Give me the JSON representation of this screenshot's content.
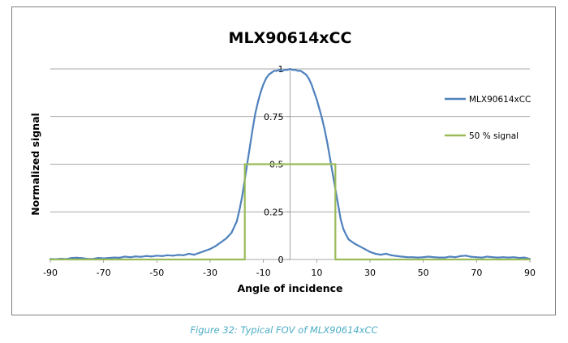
{
  "caption": "Figure 32: Typical FOV of MLX90614xCC",
  "chart_data": {
    "type": "line",
    "title": "MLX90614xCC",
    "xlabel": "Angle of incidence",
    "ylabel": "Normalized signal",
    "xlim": [
      -90,
      90
    ],
    "ylim": [
      0,
      1
    ],
    "xticks": [
      -90,
      -70,
      -50,
      -30,
      -10,
      10,
      30,
      50,
      70,
      90
    ],
    "xtick_labels": [
      "-90",
      "-70",
      "-50",
      "-30",
      "-10",
      "10",
      "30",
      "50",
      "70",
      "90"
    ],
    "yticks": [
      0,
      0.25,
      0.5,
      0.75,
      1
    ],
    "ytick_labels": [
      "0",
      "0.25",
      "0.5",
      "0.75",
      "1"
    ],
    "grid": "horizontal",
    "legend_position": "right",
    "series": [
      {
        "name": "MLX90614xCC",
        "color": "#4f81bd",
        "x": [
          -90,
          -88,
          -86,
          -84,
          -82,
          -80,
          -78,
          -76,
          -74,
          -72,
          -70,
          -68,
          -66,
          -64,
          -62,
          -60,
          -58,
          -56,
          -54,
          -52,
          -50,
          -48,
          -46,
          -44,
          -42,
          -40,
          -38,
          -36,
          -34,
          -32,
          -30,
          -28,
          -26,
          -24,
          -22,
          -20,
          -19,
          -18,
          -17,
          -16,
          -15,
          -14,
          -13,
          -12,
          -11,
          -10,
          -9,
          -8,
          -7,
          -6,
          -5,
          -4,
          -3,
          -2,
          -1,
          0,
          1,
          2,
          3,
          4,
          5,
          6,
          7,
          8,
          9,
          10,
          11,
          12,
          13,
          14,
          15,
          16,
          17,
          18,
          19,
          20,
          21,
          22,
          24,
          26,
          28,
          30,
          32,
          34,
          36,
          38,
          40,
          42,
          44,
          46,
          48,
          50,
          52,
          54,
          56,
          58,
          60,
          62,
          64,
          66,
          68,
          70,
          72,
          74,
          76,
          78,
          80,
          82,
          84,
          86,
          88,
          90
        ],
        "values": [
          0.003,
          0.001,
          0.004,
          0.002,
          0.008,
          0.009,
          0.007,
          0.003,
          0.003,
          0.008,
          0.006,
          0.008,
          0.01,
          0.009,
          0.015,
          0.012,
          0.016,
          0.014,
          0.018,
          0.016,
          0.02,
          0.018,
          0.022,
          0.02,
          0.024,
          0.022,
          0.03,
          0.025,
          0.035,
          0.045,
          0.055,
          0.07,
          0.09,
          0.11,
          0.14,
          0.2,
          0.26,
          0.33,
          0.42,
          0.51,
          0.6,
          0.69,
          0.77,
          0.83,
          0.88,
          0.92,
          0.95,
          0.97,
          0.98,
          0.99,
          0.99,
          0.995,
          0.99,
          0.995,
          0.995,
          1.0,
          0.995,
          0.995,
          0.99,
          0.99,
          0.98,
          0.97,
          0.95,
          0.92,
          0.88,
          0.84,
          0.79,
          0.74,
          0.68,
          0.61,
          0.53,
          0.45,
          0.37,
          0.29,
          0.21,
          0.16,
          0.13,
          0.105,
          0.085,
          0.07,
          0.055,
          0.04,
          0.03,
          0.025,
          0.03,
          0.022,
          0.018,
          0.015,
          0.012,
          0.012,
          0.01,
          0.012,
          0.015,
          0.012,
          0.01,
          0.01,
          0.015,
          0.012,
          0.018,
          0.02,
          0.014,
          0.012,
          0.01,
          0.015,
          0.012,
          0.01,
          0.012,
          0.01,
          0.012,
          0.008,
          0.01,
          0.003
        ]
      },
      {
        "name": "50 % signal",
        "color": "#9bbb59",
        "x": [
          -90,
          -17,
          -17,
          17,
          17,
          90
        ],
        "values": [
          0,
          0,
          0.5,
          0.5,
          0,
          0
        ]
      }
    ]
  }
}
